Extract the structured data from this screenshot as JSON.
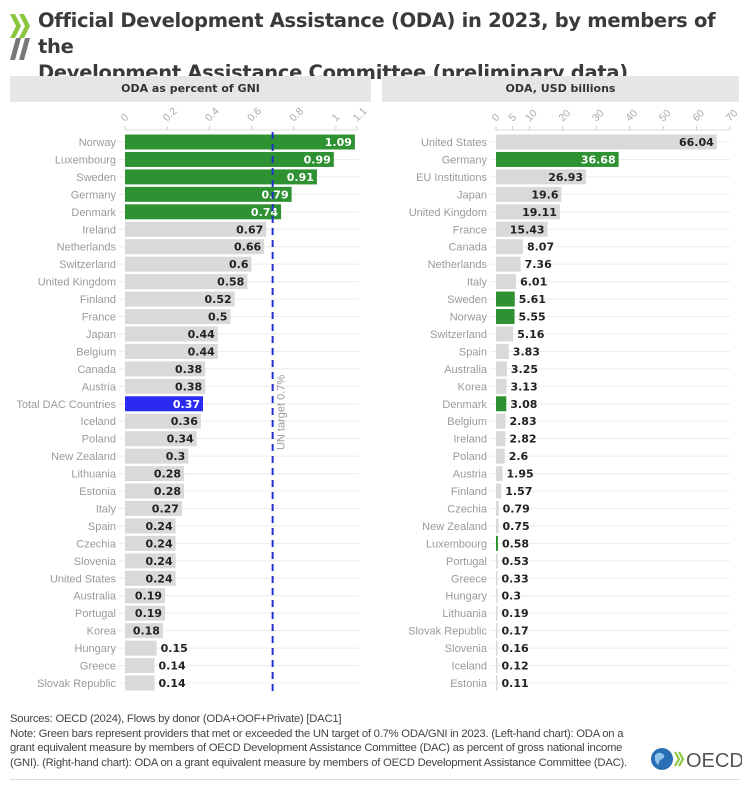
{
  "header": {
    "title_line1": "Official Development Assistance (ODA) in 2023, by members of the",
    "title_line2": "Development Assistance Committee (preliminary data)"
  },
  "colors": {
    "green": "#2e9132",
    "blue": "#2a2af2",
    "grey": "#d9d9d9",
    "target_line": "#2233cc",
    "logo_green": "#8cc63f",
    "logo_grey": "#777777"
  },
  "footer": {
    "sources": "Sources: OECD (2024), Flows by donor (ODA+OOF+Private) [DAC1]",
    "note": "Note: Green bars represent providers that met or exceeded the UN target of 0.7% ODA/GNI in 2023. (Left-hand chart): ODA on a grant equivalent measure by members of OECD Development Assistance Committee (DAC) as percent of gross national income (GNI). (Right-hand chart): ODA on a grant equivalent measure by members of OECD Development Assistance Committee (DAC).",
    "logo_text": "OECD"
  },
  "chart_data": [
    {
      "type": "bar",
      "orientation": "horizontal",
      "title": "ODA as percent of GNI",
      "xlabel": "",
      "ylabel": "",
      "xlim": [
        0,
        1.1
      ],
      "ticks": [
        0,
        0.2,
        0.4,
        0.6,
        0.8,
        1,
        1.1
      ],
      "tick_labels": [
        "0",
        "0.2",
        "0.4",
        "0.6",
        "0.8",
        "1",
        "1.1"
      ],
      "grid": true,
      "reference_line": {
        "value": 0.7,
        "label": "UN target 0.7%",
        "style": "dashed"
      },
      "categories": [
        "Norway",
        "Luxembourg",
        "Sweden",
        "Germany",
        "Denmark",
        "Ireland",
        "Netherlands",
        "Switzerland",
        "United Kingdom",
        "Finland",
        "France",
        "Japan",
        "Belgium",
        "Canada",
        "Austria",
        "Total DAC Countries",
        "Iceland",
        "Poland",
        "New Zealand",
        "Lithuania",
        "Estonia",
        "Italy",
        "Spain",
        "Czechia",
        "Slovenia",
        "United States",
        "Australia",
        "Portugal",
        "Korea",
        "Hungary",
        "Greece",
        "Slovak Republic"
      ],
      "values": [
        1.09,
        0.99,
        0.91,
        0.79,
        0.74,
        0.67,
        0.66,
        0.6,
        0.58,
        0.52,
        0.5,
        0.44,
        0.44,
        0.38,
        0.38,
        0.37,
        0.36,
        0.34,
        0.3,
        0.28,
        0.28,
        0.27,
        0.24,
        0.24,
        0.24,
        0.24,
        0.19,
        0.19,
        0.18,
        0.15,
        0.14,
        0.14
      ],
      "value_labels": [
        "1.09",
        "0.99",
        "0.91",
        "0.79",
        "0.74",
        "0.67",
        "0.66",
        "0.6",
        "0.58",
        "0.52",
        "0.5",
        "0.44",
        "0.44",
        "0.38",
        "0.38",
        "0.37",
        "0.36",
        "0.34",
        "0.3",
        "0.28",
        "0.28",
        "0.27",
        "0.24",
        "0.24",
        "0.24",
        "0.24",
        "0.19",
        "0.19",
        "0.18",
        "0.15",
        "0.14",
        "0.14"
      ],
      "highlight": {
        "green": [
          "Norway",
          "Luxembourg",
          "Sweden",
          "Germany",
          "Denmark"
        ],
        "blue": [
          "Total DAC Countries"
        ]
      }
    },
    {
      "type": "bar",
      "orientation": "horizontal",
      "title": "ODA, USD billions",
      "xlabel": "",
      "ylabel": "",
      "xlim": [
        0,
        70
      ],
      "ticks": [
        0,
        5,
        10,
        20,
        30,
        40,
        50,
        60,
        70
      ],
      "tick_labels": [
        "0",
        "5",
        "10",
        "20",
        "30",
        "40",
        "50",
        "60",
        "70"
      ],
      "grid": true,
      "categories": [
        "United States",
        "Germany",
        "EU Institutions",
        "Japan",
        "United Kingdom",
        "France",
        "Canada",
        "Netherlands",
        "Italy",
        "Sweden",
        "Norway",
        "Switzerland",
        "Spain",
        "Australia",
        "Korea",
        "Denmark",
        "Belgium",
        "Ireland",
        "Poland",
        "Austria",
        "Finland",
        "Czechia",
        "New Zealand",
        "Luxembourg",
        "Portugal",
        "Greece",
        "Hungary",
        "Lithuania",
        "Slovak Republic",
        "Slovenia",
        "Iceland",
        "Estonia"
      ],
      "values": [
        66.04,
        36.68,
        26.93,
        19.6,
        19.11,
        15.43,
        8.07,
        7.36,
        6.01,
        5.61,
        5.55,
        5.16,
        3.83,
        3.25,
        3.13,
        3.08,
        2.83,
        2.82,
        2.6,
        1.95,
        1.57,
        0.79,
        0.75,
        0.58,
        0.53,
        0.33,
        0.3,
        0.19,
        0.17,
        0.16,
        0.12,
        0.11
      ],
      "value_labels": [
        "66.04",
        "36.68",
        "26.93",
        "19.6",
        "19.11",
        "15.43",
        "8.07",
        "7.36",
        "6.01",
        "5.61",
        "5.55",
        "5.16",
        "3.83",
        "3.25",
        "3.13",
        "3.08",
        "2.83",
        "2.82",
        "2.6",
        "1.95",
        "1.57",
        "0.79",
        "0.75",
        "0.58",
        "0.53",
        "0.33",
        "0.3",
        "0.19",
        "0.17",
        "0.16",
        "0.12",
        "0.11"
      ],
      "highlight": {
        "green": [
          "Germany",
          "Sweden",
          "Norway",
          "Denmark",
          "Luxembourg"
        ],
        "blue": []
      }
    }
  ]
}
